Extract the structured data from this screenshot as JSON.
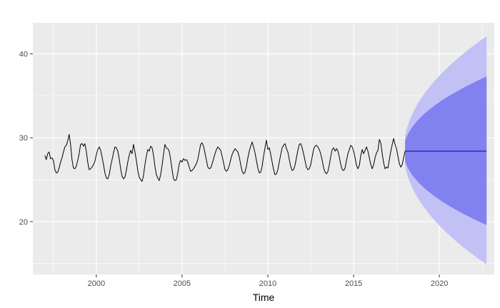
{
  "chart_data": {
    "type": "line",
    "title": "",
    "xlabel": "Time",
    "ylabel": "",
    "xlim": [
      1996.3,
      2023.2
    ],
    "ylim": [
      13.7,
      43.7
    ],
    "x_ticks": [
      2000,
      2005,
      2010,
      2015,
      2020
    ],
    "x_tick_labels": [
      "2000",
      "2005",
      "2010",
      "2015",
      "2020"
    ],
    "y_ticks": [
      20,
      30,
      40
    ],
    "y_tick_labels": [
      "20",
      "30",
      "40"
    ],
    "grid": true,
    "background": "#EBEBEB",
    "observed": {
      "start": 1997.0,
      "frequency": 12,
      "color": "#000000",
      "values": [
        27.9,
        27.4,
        28.1,
        28.3,
        27.5,
        27.6,
        27.3,
        26.2,
        25.8,
        25.9,
        26.4,
        27.1,
        27.6,
        28.3,
        28.9,
        29.1,
        29.6,
        30.4,
        29.2,
        27.4,
        26.4,
        26.3,
        26.6,
        27.3,
        28.1,
        29.2,
        29.3,
        29.0,
        29.3,
        28.4,
        27.1,
        26.2,
        26.3,
        26.5,
        26.8,
        27.2,
        28.0,
        28.6,
        28.9,
        28.5,
        27.7,
        26.8,
        25.8,
        25.2,
        25.1,
        25.6,
        26.6,
        27.4,
        28.2,
        28.9,
        28.8,
        28.4,
        27.5,
        26.3,
        25.4,
        25.1,
        25.3,
        26.1,
        27.1,
        27.9,
        28.5,
        28.1,
        29.2,
        28.3,
        27.3,
        26.1,
        25.3,
        25.0,
        24.8,
        25.5,
        26.8,
        27.8,
        28.6,
        28.4,
        29.0,
        28.8,
        27.9,
        26.6,
        25.6,
        25.2,
        24.9,
        25.6,
        26.7,
        28.0,
        29.2,
        28.8,
        28.7,
        28.4,
        27.4,
        26.2,
        25.1,
        24.9,
        25.0,
        25.8,
        26.9,
        27.3,
        27.1,
        27.5,
        27.3,
        27.4,
        27.1,
        26.5,
        26.0,
        26.1,
        26.3,
        26.6,
        26.9,
        27.4,
        28.3,
        29.2,
        29.4,
        29.0,
        28.2,
        27.3,
        26.5,
        26.3,
        26.4,
        26.9,
        27.5,
        28.1,
        28.6,
        28.9,
        28.7,
        28.5,
        27.8,
        27.0,
        26.2,
        26.0,
        26.2,
        26.7,
        27.4,
        28.0,
        28.4,
        28.7,
        28.5,
        28.3,
        27.7,
        26.8,
        26.0,
        25.7,
        25.9,
        26.6,
        27.6,
        28.4,
        29.0,
        29.5,
        28.9,
        28.2,
        27.3,
        26.4,
        25.8,
        25.9,
        26.6,
        27.8,
        28.8,
        29.7,
        28.6,
        28.8,
        28.0,
        27.1,
        26.2,
        25.6,
        25.7,
        26.2,
        27.1,
        28.0,
        28.8,
        29.1,
        29.3,
        28.7,
        28.3,
        27.4,
        26.6,
        26.1,
        26.2,
        26.7,
        27.6,
        28.5,
        29.2,
        29.3,
        28.8,
        28.1,
        27.3,
        26.5,
        26.2,
        26.3,
        26.8,
        27.7,
        28.6,
        29.0,
        29.1,
        28.9,
        28.6,
        28.1,
        27.3,
        26.4,
        25.9,
        25.7,
        26.0,
        26.8,
        27.8,
        28.6,
        28.8,
        28.4,
        28.7,
        28.4,
        27.7,
        26.8,
        26.2,
        26.1,
        26.4,
        27.3,
        28.1,
        28.6,
        29.1,
        28.9,
        28.4,
        27.6,
        26.7,
        26.3,
        26.7,
        27.9,
        28.6,
        28.1,
        28.5,
        28.9,
        28.4,
        27.6,
        26.8,
        26.3,
        26.8,
        27.6,
        28.2,
        28.5,
        29.8,
        29.4,
        28.1,
        27.0,
        26.3,
        26.5,
        26.4,
        27.4,
        28.4,
        29.2,
        29.9,
        29.2,
        28.7,
        27.8,
        26.9,
        26.5,
        26.8,
        27.6,
        28.4
      ]
    },
    "forecast": {
      "start": 2018.0,
      "end": 2022.75,
      "point": 28.4,
      "interval_80": {
        "lower_end": 19.6,
        "upper_end": 37.3,
        "color": "#8181F0"
      },
      "interval_95": {
        "lower_end": 14.9,
        "upper_end": 42.1,
        "color": "#C1C1F6"
      },
      "line_color": "#0000AA"
    }
  }
}
